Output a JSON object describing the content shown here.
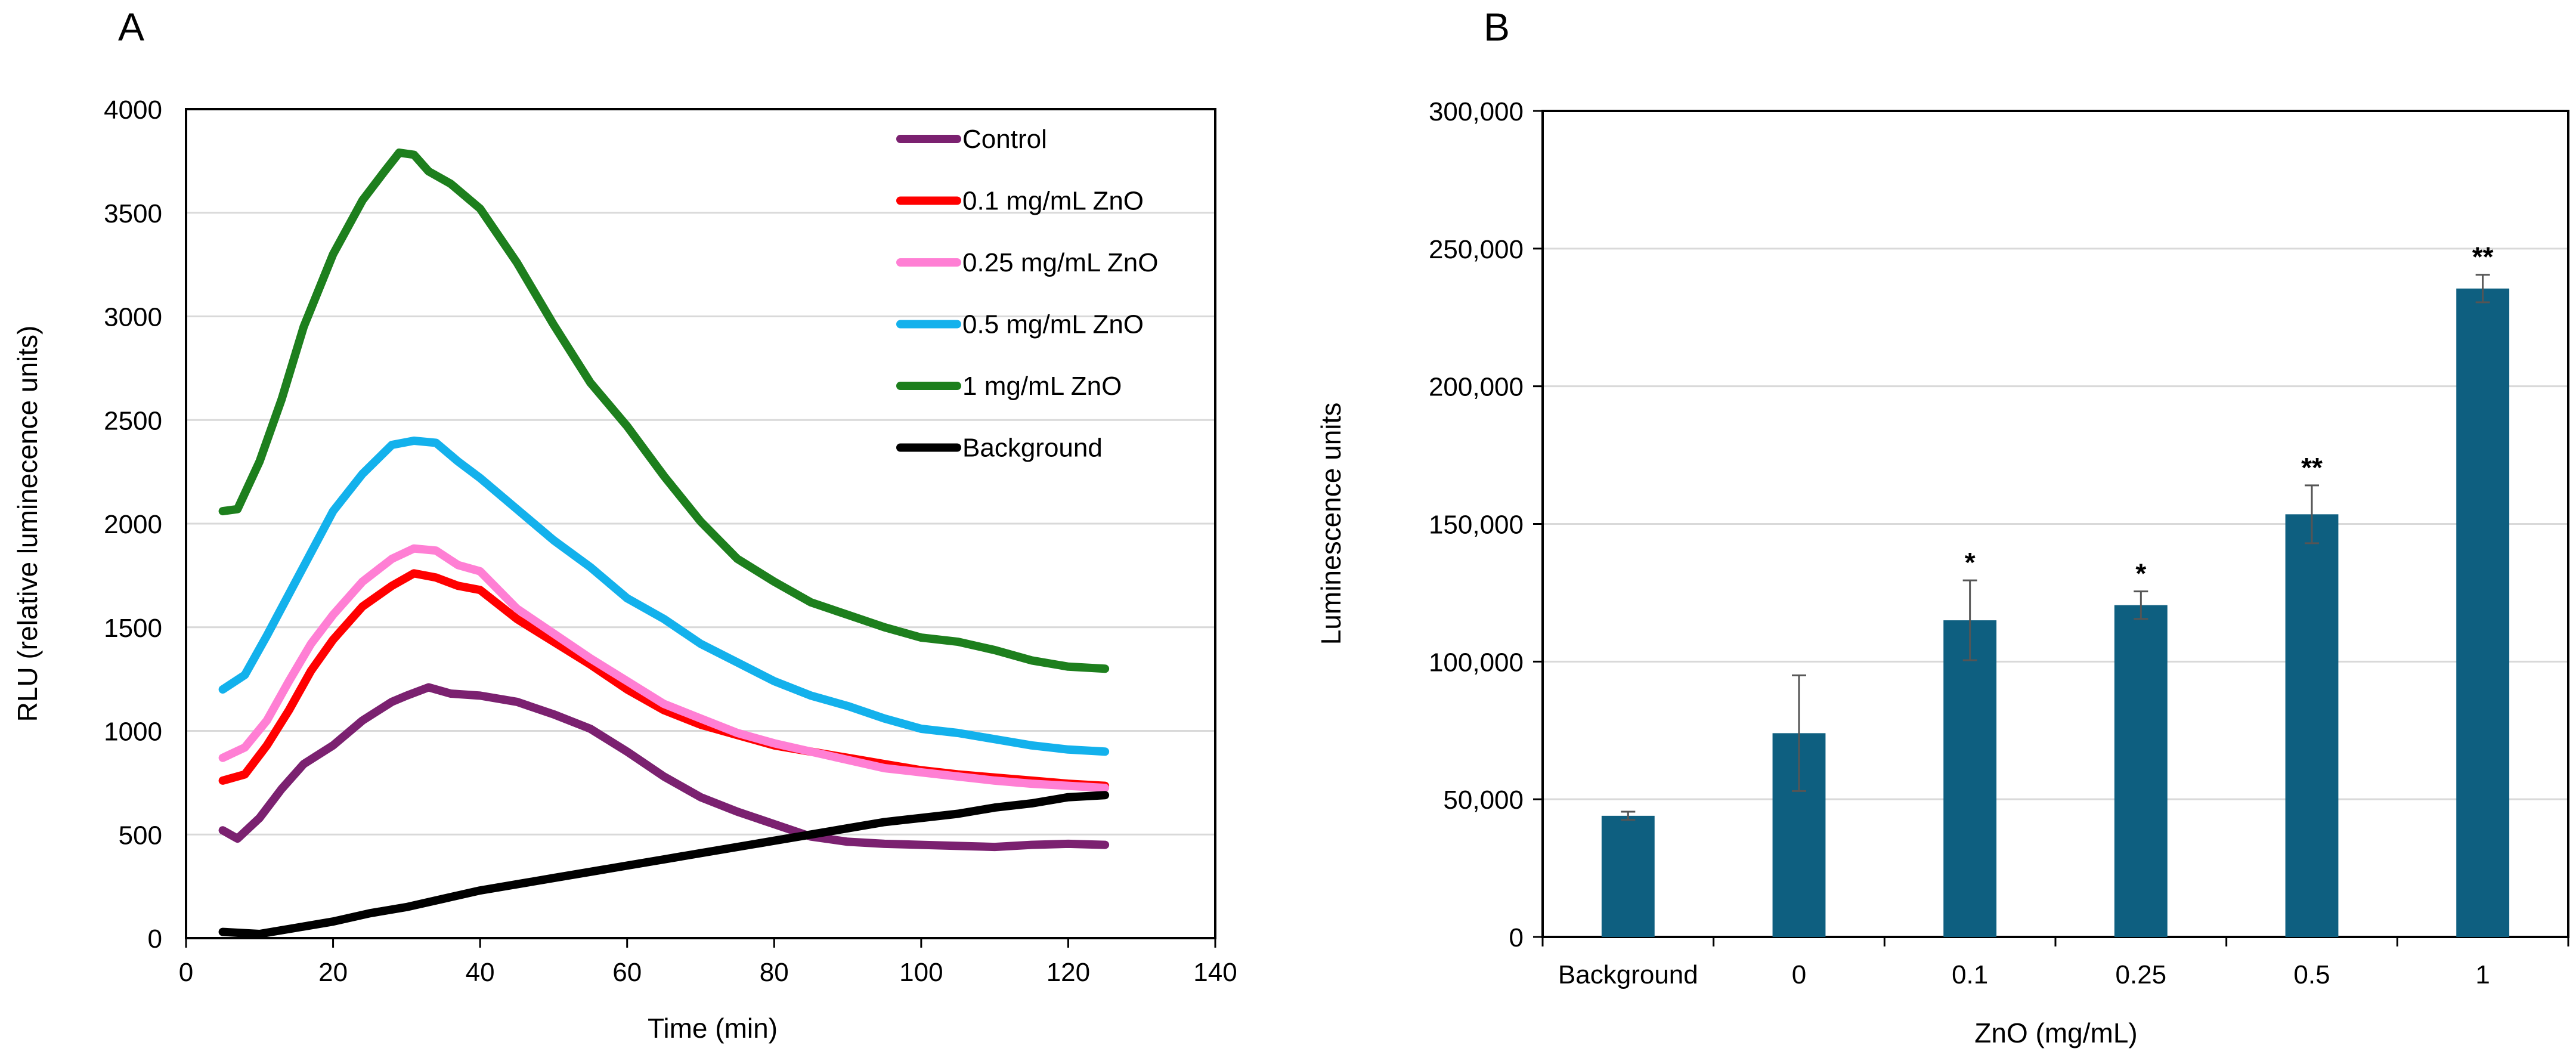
{
  "chart_data": [
    {
      "panel_label": "A",
      "type": "line",
      "title": "",
      "xlabel": "Time (min)",
      "ylabel": "RLU (relative luminecence units)",
      "xlim": [
        0,
        140
      ],
      "ylim": [
        0,
        4000
      ],
      "xticks": [
        0,
        20,
        40,
        60,
        80,
        100,
        120,
        140
      ],
      "yticks": [
        0,
        500,
        1000,
        1500,
        2000,
        2500,
        3000,
        3500,
        4000
      ],
      "grid": "horizontal",
      "legend_position": "top-right, inside plot",
      "series": [
        {
          "name": "Control",
          "color": "#7B2170",
          "x": [
            5,
            7,
            10,
            13,
            16,
            20,
            24,
            28,
            30,
            33,
            36,
            40,
            45,
            50,
            55,
            60,
            65,
            70,
            75,
            80,
            85,
            90,
            95,
            100,
            105,
            110,
            115,
            120,
            125
          ],
          "y": [
            520,
            480,
            580,
            720,
            840,
            930,
            1050,
            1140,
            1170,
            1210,
            1180,
            1170,
            1140,
            1080,
            1010,
            900,
            780,
            680,
            610,
            550,
            490,
            465,
            455,
            450,
            445,
            440,
            450,
            455,
            450
          ]
        },
        {
          "name": "0.1 mg/mL ZnO",
          "color": "#FF0000",
          "x": [
            5,
            8,
            11,
            14,
            17,
            20,
            24,
            28,
            31,
            34,
            37,
            40,
            45,
            50,
            55,
            60,
            65,
            70,
            75,
            80,
            85,
            90,
            95,
            100,
            105,
            110,
            115,
            120,
            125
          ],
          "y": [
            760,
            790,
            930,
            1100,
            1290,
            1440,
            1600,
            1700,
            1760,
            1740,
            1700,
            1680,
            1540,
            1430,
            1320,
            1200,
            1100,
            1030,
            980,
            930,
            900,
            870,
            840,
            810,
            790,
            775,
            760,
            745,
            735
          ]
        },
        {
          "name": "0.25 mg/mL ZnO",
          "color": "#FF7FD4",
          "x": [
            5,
            8,
            11,
            14,
            17,
            20,
            24,
            28,
            31,
            34,
            37,
            40,
            45,
            50,
            55,
            60,
            65,
            70,
            75,
            80,
            85,
            90,
            95,
            100,
            105,
            110,
            115,
            120,
            125
          ],
          "y": [
            870,
            920,
            1050,
            1240,
            1420,
            1560,
            1720,
            1830,
            1880,
            1870,
            1800,
            1770,
            1590,
            1470,
            1350,
            1240,
            1130,
            1060,
            990,
            940,
            900,
            860,
            820,
            800,
            780,
            760,
            745,
            735,
            725
          ]
        },
        {
          "name": "0.5 mg/mL ZnO",
          "color": "#13B1EC",
          "x": [
            5,
            8,
            11,
            14,
            17,
            20,
            24,
            28,
            31,
            34,
            37,
            40,
            45,
            50,
            55,
            60,
            65,
            70,
            75,
            80,
            85,
            90,
            95,
            100,
            105,
            110,
            115,
            120,
            125
          ],
          "y": [
            1200,
            1270,
            1460,
            1660,
            1860,
            2060,
            2240,
            2380,
            2400,
            2390,
            2300,
            2220,
            2070,
            1920,
            1790,
            1640,
            1540,
            1420,
            1330,
            1240,
            1170,
            1120,
            1060,
            1010,
            990,
            960,
            930,
            910,
            900
          ]
        },
        {
          "name": "1 mg/mL ZnO",
          "color": "#1D7F1D",
          "x": [
            5,
            7,
            10,
            13,
            16,
            20,
            24,
            27,
            29,
            31,
            33,
            36,
            40,
            45,
            50,
            55,
            60,
            65,
            70,
            75,
            80,
            85,
            90,
            95,
            100,
            105,
            110,
            115,
            120,
            125
          ],
          "y": [
            2060,
            2070,
            2300,
            2600,
            2950,
            3300,
            3560,
            3700,
            3790,
            3780,
            3700,
            3640,
            3520,
            3260,
            2960,
            2680,
            2470,
            2230,
            2010,
            1830,
            1720,
            1620,
            1560,
            1500,
            1450,
            1430,
            1390,
            1340,
            1310,
            1300
          ]
        },
        {
          "name": "Background",
          "color": "#000000",
          "x": [
            5,
            10,
            15,
            20,
            25,
            30,
            35,
            40,
            45,
            50,
            55,
            60,
            65,
            70,
            75,
            80,
            85,
            90,
            95,
            100,
            105,
            110,
            115,
            120,
            125
          ],
          "y": [
            30,
            20,
            50,
            80,
            120,
            150,
            190,
            230,
            260,
            290,
            320,
            350,
            380,
            410,
            440,
            470,
            500,
            530,
            560,
            580,
            600,
            630,
            650,
            680,
            690
          ]
        }
      ]
    },
    {
      "panel_label": "B",
      "type": "bar",
      "title": "",
      "xlabel": "ZnO (mg/mL)",
      "ylabel": "Luminescence units",
      "ylim": [
        0,
        300000
      ],
      "yticks": [
        "0",
        "50,000",
        "100,000",
        "150,000",
        "200,000",
        "250,000",
        "300,000"
      ],
      "ytick_values": [
        0,
        50000,
        100000,
        150000,
        200000,
        250000,
        300000
      ],
      "grid": "horizontal",
      "bar_color": "#0E5F80",
      "categories": [
        "Background",
        "0",
        "0.1",
        "0.25",
        "0.5",
        "1"
      ],
      "values": [
        44000,
        74000,
        115000,
        120500,
        153500,
        235500
      ],
      "errors": [
        1500,
        21000,
        14500,
        5000,
        10500,
        5000
      ],
      "significance": [
        "",
        "",
        "*",
        "*",
        "**",
        "**"
      ]
    }
  ]
}
